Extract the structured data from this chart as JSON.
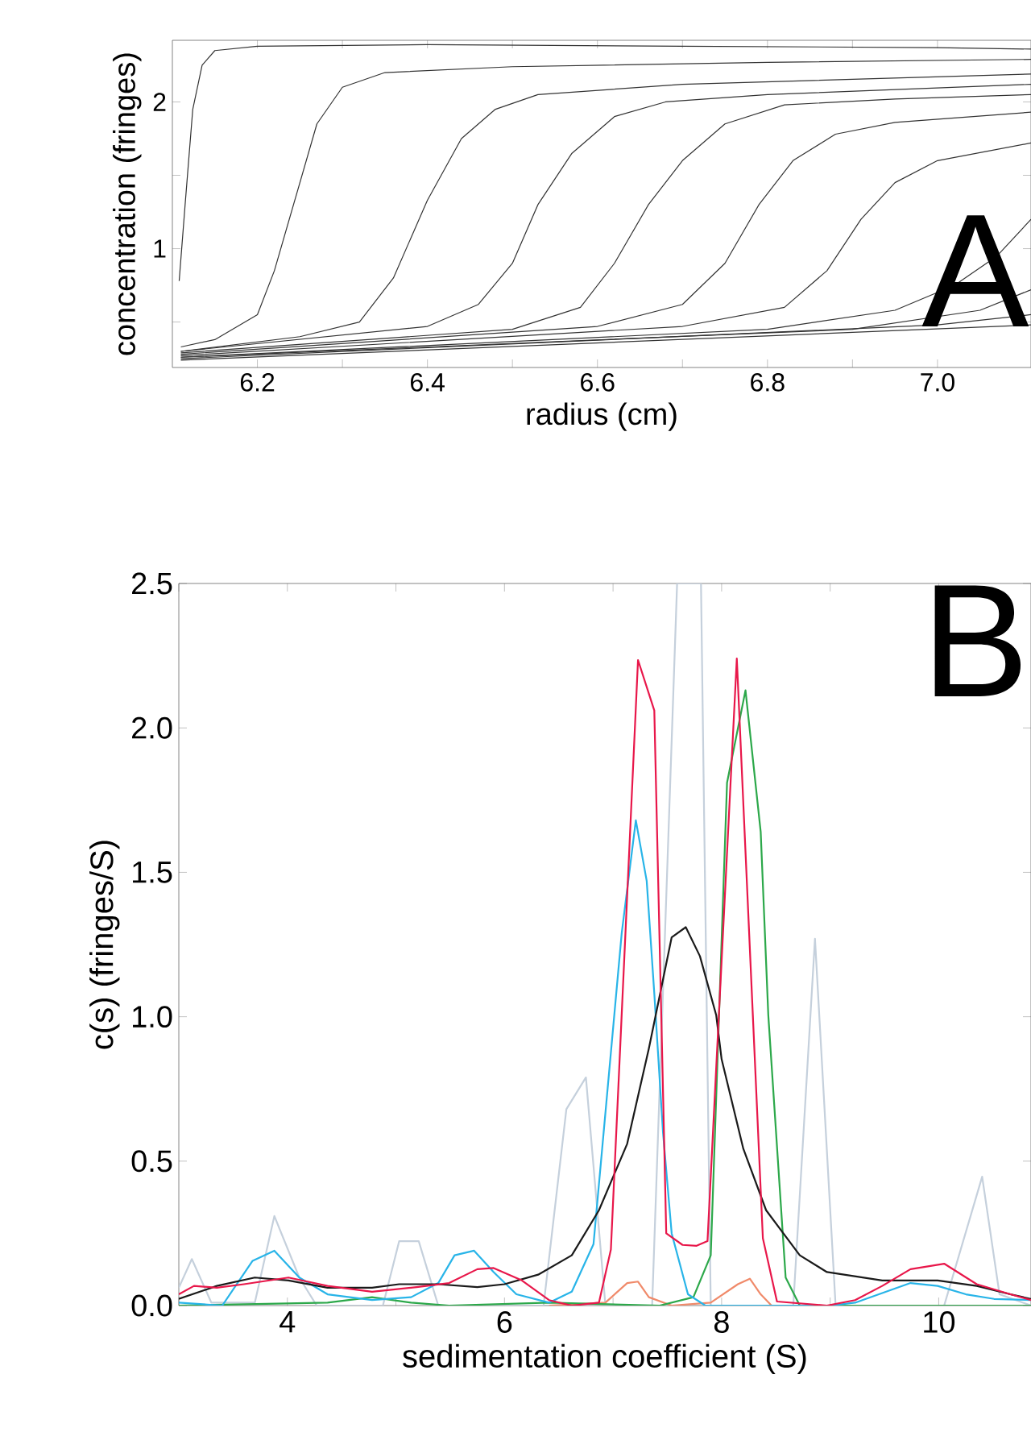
{
  "chart_data": [
    {
      "type": "line",
      "xlabel": "radius (cm)",
      "ylabel": "concentration (fringes)",
      "annotations": [
        "A"
      ],
      "xlim": [
        6.1,
        7.11
      ],
      "ylim": [
        0.19,
        2.42
      ],
      "xticks": [
        {
          "value": 6.2,
          "label": "6.2"
        },
        {
          "value": 6.3,
          "label": null
        },
        {
          "value": 6.4,
          "label": "6.4"
        },
        {
          "value": 6.5,
          "label": null
        },
        {
          "value": 6.6,
          "label": "6.6"
        },
        {
          "value": 6.7,
          "label": null
        },
        {
          "value": 6.8,
          "label": "6.8"
        },
        {
          "value": 6.9,
          "label": null
        },
        {
          "value": 7.0,
          "label": "7.0"
        }
      ],
      "yticks": [
        {
          "value": 0.5,
          "label": null
        },
        {
          "value": 1,
          "label": "1"
        },
        {
          "value": 1.5,
          "label": null
        },
        {
          "value": 2,
          "label": "2"
        }
      ],
      "series": [
        {
          "color": "#333333",
          "x": [
            6.108,
            6.115,
            6.124,
            6.135,
            6.15,
            6.2,
            6.4,
            6.7,
            7.0,
            7.11
          ],
          "values": [
            0.78,
            1.3,
            1.95,
            2.25,
            2.35,
            2.38,
            2.39,
            2.38,
            2.37,
            2.36
          ]
        },
        {
          "color": "#333333",
          "x": [
            6.11,
            6.15,
            6.2,
            6.22,
            6.245,
            6.27,
            6.3,
            6.35,
            6.5,
            6.8,
            7.11
          ],
          "values": [
            0.33,
            0.38,
            0.55,
            0.85,
            1.35,
            1.85,
            2.1,
            2.2,
            2.24,
            2.27,
            2.29
          ]
        },
        {
          "color": "#333333",
          "x": [
            6.11,
            6.25,
            6.32,
            6.36,
            6.4,
            6.44,
            6.48,
            6.53,
            6.7,
            7.11
          ],
          "values": [
            0.3,
            0.4,
            0.5,
            0.8,
            1.33,
            1.75,
            1.95,
            2.05,
            2.12,
            2.19
          ]
        },
        {
          "color": "#333333",
          "x": [
            6.11,
            6.4,
            6.46,
            6.5,
            6.53,
            6.57,
            6.62,
            6.68,
            6.8,
            7.11
          ],
          "values": [
            0.3,
            0.47,
            0.62,
            0.9,
            1.3,
            1.65,
            1.9,
            2.0,
            2.05,
            2.12
          ]
        },
        {
          "color": "#333333",
          "x": [
            6.11,
            6.5,
            6.58,
            6.62,
            6.66,
            6.7,
            6.75,
            6.82,
            6.95,
            7.11
          ],
          "values": [
            0.29,
            0.45,
            0.6,
            0.9,
            1.3,
            1.6,
            1.85,
            1.98,
            2.02,
            2.05
          ]
        },
        {
          "color": "#333333",
          "x": [
            6.11,
            6.6,
            6.7,
            6.75,
            6.79,
            6.83,
            6.88,
            6.95,
            7.11
          ],
          "values": [
            0.28,
            0.47,
            0.62,
            0.9,
            1.3,
            1.6,
            1.78,
            1.86,
            1.93
          ]
        },
        {
          "color": "#333333",
          "x": [
            6.11,
            6.7,
            6.82,
            6.87,
            6.91,
            6.95,
            7.0,
            7.11
          ],
          "values": [
            0.27,
            0.47,
            0.6,
            0.85,
            1.2,
            1.45,
            1.6,
            1.72
          ]
        },
        {
          "color": "#333333",
          "x": [
            6.11,
            6.8,
            6.95,
            7.02,
            7.07,
            7.11
          ],
          "values": [
            0.26,
            0.45,
            0.58,
            0.75,
            0.95,
            1.2
          ]
        },
        {
          "color": "#333333",
          "x": [
            6.11,
            6.9,
            7.05,
            7.11
          ],
          "values": [
            0.26,
            0.45,
            0.58,
            0.72
          ]
        },
        {
          "color": "#333333",
          "x": [
            6.11,
            7.0,
            7.11
          ],
          "values": [
            0.25,
            0.48,
            0.55
          ]
        },
        {
          "color": "#333333",
          "x": [
            6.11,
            7.11
          ],
          "values": [
            0.24,
            0.48
          ]
        }
      ]
    },
    {
      "type": "line",
      "xlabel": "sedimentation coefficient (S)",
      "ylabel": "c(s) (fringes/S)",
      "annotations": [
        "B"
      ],
      "xlim": [
        3,
        10.85
      ],
      "ylim": [
        0,
        2.5
      ],
      "xticks": [
        {
          "value": 3,
          "label": null
        },
        4,
        {
          "value": 5,
          "label": null
        },
        6,
        {
          "value": 7,
          "label": null
        },
        8,
        {
          "value": 9,
          "label": null
        },
        10
      ],
      "yticks": [
        {
          "value": 0,
          "label": "0.0"
        },
        {
          "value": 0.5,
          "label": "0.5"
        },
        {
          "value": 1,
          "label": "1.0"
        },
        {
          "value": 1.5,
          "label": "1.5"
        },
        {
          "value": 2,
          "label": "2.0"
        },
        {
          "value": 2.5,
          "label": "2.5"
        }
      ],
      "series": [
        {
          "color": "#c5d0dc",
          "x": [
            3.0,
            3.12,
            3.3,
            3.7,
            3.88,
            4.11,
            4.27,
            4.88,
            5.03,
            5.21,
            5.39,
            6.36,
            6.57,
            6.75,
            6.93,
            7.36,
            7.59,
            7.81,
            7.9,
            8.66,
            8.86,
            9.05,
            10.05,
            10.4,
            10.56,
            10.85
          ],
          "values": [
            0.062,
            0.161,
            0.01,
            0.01,
            0.31,
            0.097,
            0,
            0,
            0.223,
            0.223,
            0,
            0,
            0.68,
            0.79,
            0,
            0,
            2.5,
            2.5,
            0,
            0,
            1.27,
            0,
            0,
            0.446,
            0.039,
            0
          ]
        },
        {
          "color": "#f08a6a",
          "x": [
            6.41,
            6.93,
            7.13,
            7.23,
            7.33,
            7.54,
            7.9,
            8.15,
            8.26,
            8.36,
            8.46
          ],
          "values": [
            0,
            0.01,
            0.078,
            0.083,
            0.029,
            0,
            0.01,
            0.074,
            0.093,
            0.039,
            0
          ]
        },
        {
          "color": "#2ca84a",
          "x": [
            3.0,
            4.37,
            4.78,
            5.14,
            5.49,
            6.41,
            7.43,
            7.74,
            7.9,
            8.05,
            8.22,
            8.36,
            8.43,
            8.59,
            8.72,
            10.85
          ],
          "values": [
            0,
            0.01,
            0.029,
            0.01,
            0,
            0.01,
            0,
            0.029,
            0.174,
            1.81,
            2.13,
            1.64,
            1.006,
            0.097,
            0,
            0
          ]
        },
        {
          "color": "#28b4e8",
          "x": [
            3.0,
            3.4,
            3.68,
            3.88,
            4.11,
            4.37,
            4.78,
            5.14,
            5.39,
            5.54,
            5.72,
            5.9,
            6.11,
            6.41,
            6.62,
            6.82,
            7.08,
            7.21,
            7.31,
            7.38,
            7.46,
            7.54,
            7.69,
            7.85,
            9.0,
            9.23,
            9.74,
            9.99,
            10.25,
            10.51,
            10.85
          ],
          "values": [
            0.01,
            0,
            0.155,
            0.19,
            0.097,
            0.039,
            0.019,
            0.029,
            0.078,
            0.174,
            0.19,
            0.116,
            0.039,
            0.01,
            0.048,
            0.213,
            1.29,
            1.68,
            1.47,
            1.08,
            0.6,
            0.25,
            0.039,
            0,
            0,
            0.01,
            0.078,
            0.068,
            0.039,
            0.023,
            0.019
          ]
        },
        {
          "color": "#1a1a1a",
          "x": [
            3.0,
            3.35,
            3.7,
            4.01,
            4.37,
            4.78,
            5.03,
            5.39,
            5.75,
            6.0,
            6.31,
            6.62,
            6.87,
            7.13,
            7.33,
            7.54,
            7.67,
            7.8,
            7.95,
            8.0,
            8.2,
            8.41,
            8.72,
            8.97,
            9.48,
            9.99,
            10.35,
            10.66,
            10.85
          ],
          "values": [
            0.023,
            0.068,
            0.097,
            0.087,
            0.062,
            0.062,
            0.074,
            0.074,
            0.064,
            0.074,
            0.107,
            0.174,
            0.33,
            0.56,
            0.89,
            1.275,
            1.31,
            1.21,
            1.006,
            0.853,
            0.543,
            0.33,
            0.174,
            0.116,
            0.087,
            0.087,
            0.068,
            0.039,
            0.023
          ]
        },
        {
          "color": "#e8174a",
          "x": [
            3.0,
            3.14,
            3.35,
            3.6,
            4.01,
            4.37,
            4.78,
            5.19,
            5.49,
            5.75,
            5.9,
            6.16,
            6.41,
            6.62,
            6.87,
            6.98,
            7.23,
            7.38,
            7.49,
            7.64,
            7.77,
            7.87,
            8.14,
            8.38,
            8.51,
            8.97,
            9.23,
            9.48,
            9.74,
            10.05,
            10.35,
            10.66,
            10.85
          ],
          "values": [
            0.039,
            0.068,
            0.062,
            0.074,
            0.097,
            0.068,
            0.048,
            0.064,
            0.078,
            0.126,
            0.13,
            0.087,
            0.019,
            0,
            0.01,
            0.194,
            2.235,
            2.06,
            0.25,
            0.21,
            0.207,
            0.223,
            2.24,
            0.233,
            0.014,
            0,
            0.019,
            0.068,
            0.126,
            0.145,
            0.074,
            0.039,
            0.019
          ]
        }
      ]
    }
  ]
}
